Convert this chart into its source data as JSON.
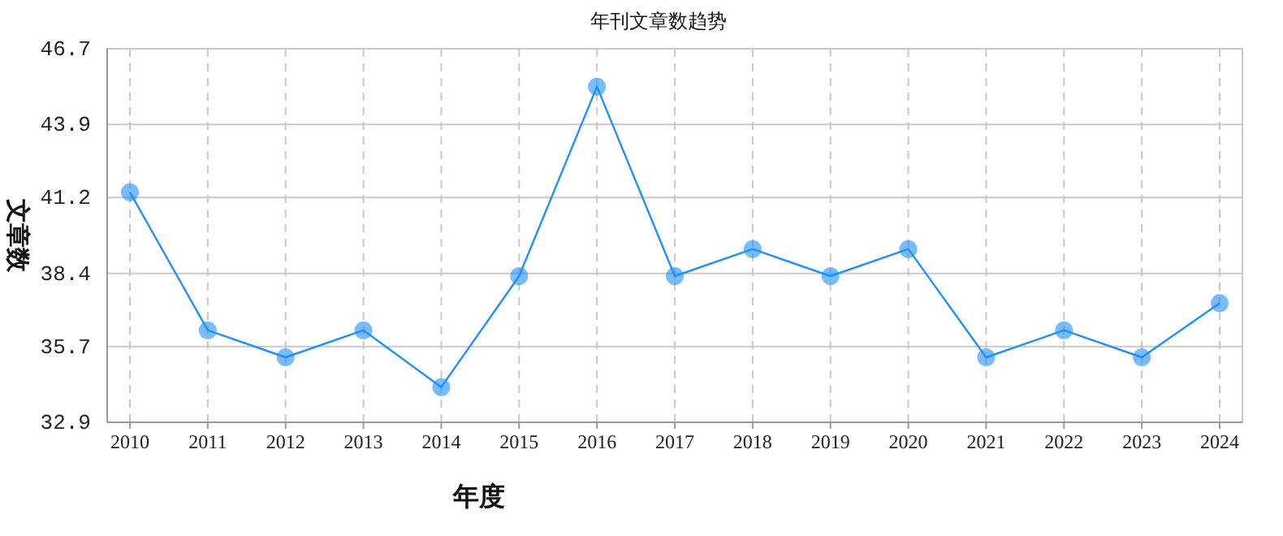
{
  "chart_data": {
    "type": "line",
    "title": "年刊文章数趋势",
    "xlabel": "年度",
    "ylabel": "文章数",
    "categories": [
      "2010",
      "2011",
      "2012",
      "2013",
      "2014",
      "2015",
      "2016",
      "2017",
      "2018",
      "2019",
      "2020",
      "2021",
      "2022",
      "2023",
      "2024"
    ],
    "series": [
      {
        "color": "#1e90ff",
        "values": [
          41.4,
          36.3,
          35.3,
          36.3,
          34.2,
          38.3,
          45.3,
          38.3,
          39.3,
          38.3,
          39.3,
          35.3,
          36.3,
          35.3,
          37.3
        ]
      }
    ],
    "ylim": [
      32.9,
      46.7
    ],
    "yticks": [
      32.9,
      35.7,
      38.4,
      41.2,
      43.9,
      46.7
    ],
    "grid": true,
    "marker": "circle",
    "line_style": "solid"
  }
}
